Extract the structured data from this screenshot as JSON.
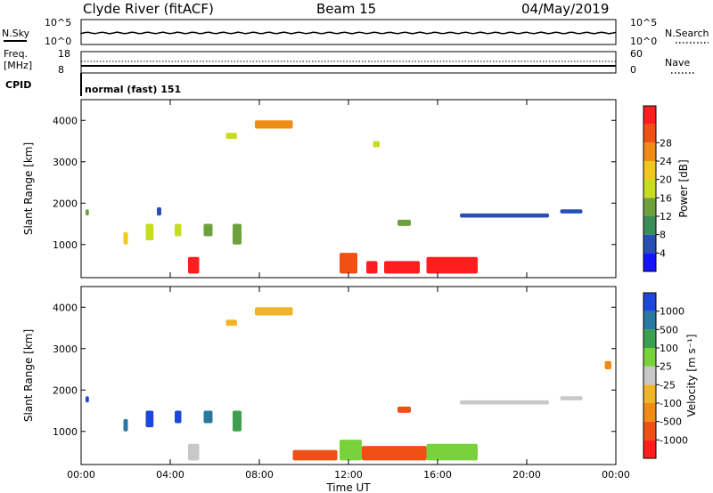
{
  "header": {
    "radar": "Clyde River (fitACF)",
    "beam": "Beam 15",
    "date": "04/May/2019"
  },
  "noise_panel": {
    "left_label": "N.Sky",
    "right_label": "N.Search",
    "left_ticks": [
      "10^5",
      "10^0"
    ],
    "right_ticks": [
      "10^5",
      "10^0"
    ]
  },
  "freq_panel": {
    "left_label_1": "Freq.",
    "left_label_2": "[MHz]",
    "right_label": "Nave",
    "left_ticks": [
      "18",
      "8"
    ],
    "right_ticks": [
      "60",
      "0"
    ],
    "cpid_label": "CPID",
    "cpid_value": "normal (fast) 151"
  },
  "chart_data": [
    {
      "type": "heatmap",
      "name": "power",
      "ylabel": "Slant Range [km]",
      "xlabel": "",
      "x_ticks": [
        "00:00",
        "04:00",
        "08:00",
        "12:00",
        "16:00",
        "20:00",
        "00:00"
      ],
      "y_ticks": [
        "1000",
        "2000",
        "3000",
        "4000"
      ],
      "ylim": [
        200,
        4500
      ],
      "colorbar": {
        "label": "Power [dB]",
        "ticks": [
          "4",
          "8",
          "12",
          "16",
          "20",
          "24",
          "28"
        ],
        "colors": [
          "#1414ff",
          "#2850b4",
          "#3c8c5a",
          "#6ea03c",
          "#c8dc1e",
          "#f0c81e",
          "#f08c14",
          "#f05014",
          "#ff1e1e"
        ]
      },
      "blobs": [
        {
          "t0": 1.9,
          "t1": 2.1,
          "r0": 1000,
          "r1": 1300,
          "c": 5
        },
        {
          "t0": 0.2,
          "t1": 0.35,
          "r0": 1700,
          "r1": 1850,
          "c": 3
        },
        {
          "t0": 2.9,
          "t1": 3.25,
          "r0": 1100,
          "r1": 1500,
          "c": 4
        },
        {
          "t0": 3.4,
          "t1": 3.6,
          "r0": 1700,
          "r1": 1900,
          "c": 1
        },
        {
          "t0": 4.2,
          "t1": 4.5,
          "r0": 1200,
          "r1": 1500,
          "c": 4
        },
        {
          "t0": 5.5,
          "t1": 5.9,
          "r0": 1200,
          "r1": 1500,
          "c": 3
        },
        {
          "t0": 6.8,
          "t1": 7.2,
          "r0": 1000,
          "r1": 1500,
          "c": 3
        },
        {
          "t0": 6.5,
          "t1": 7.0,
          "r0": 3550,
          "r1": 3700,
          "c": 4
        },
        {
          "t0": 7.8,
          "t1": 9.5,
          "r0": 3800,
          "r1": 4000,
          "c": 6
        },
        {
          "t0": 4.8,
          "t1": 5.3,
          "r0": 300,
          "r1": 700,
          "c": 8
        },
        {
          "t0": 11.6,
          "t1": 12.4,
          "r0": 300,
          "r1": 800,
          "c": 7
        },
        {
          "t0": 12.8,
          "t1": 13.3,
          "r0": 300,
          "r1": 600,
          "c": 8
        },
        {
          "t0": 13.6,
          "t1": 15.2,
          "r0": 300,
          "r1": 600,
          "c": 8
        },
        {
          "t0": 15.5,
          "t1": 17.8,
          "r0": 300,
          "r1": 700,
          "c": 8
        },
        {
          "t0": 14.2,
          "t1": 14.8,
          "r0": 1450,
          "r1": 1600,
          "c": 3
        },
        {
          "t0": 17.0,
          "t1": 21.0,
          "r0": 1650,
          "r1": 1750,
          "c": 1
        },
        {
          "t0": 21.5,
          "t1": 22.5,
          "r0": 1750,
          "r1": 1850,
          "c": 1
        },
        {
          "t0": 13.1,
          "t1": 13.4,
          "r0": 3350,
          "r1": 3500,
          "c": 4
        }
      ]
    },
    {
      "type": "heatmap",
      "name": "velocity",
      "ylabel": "Slant Range [km]",
      "xlabel": "Time UT",
      "x_ticks": [
        "00:00",
        "04:00",
        "08:00",
        "12:00",
        "16:00",
        "20:00",
        "00:00"
      ],
      "y_ticks": [
        "1000",
        "2000",
        "3000",
        "4000"
      ],
      "ylim": [
        200,
        4500
      ],
      "colorbar": {
        "label": "Velocity [m s⁻¹]",
        "ticks": [
          "1000",
          "500",
          "100",
          "25",
          "-25",
          "-100",
          "-500",
          "-1000"
        ],
        "colors": [
          "#1e46dc",
          "#2878a0",
          "#3ca050",
          "#78d23c",
          "#c8c8c8",
          "#f0b428",
          "#f08c14",
          "#f05014",
          "#ff1e1e"
        ]
      },
      "blobs": [
        {
          "t0": 0.2,
          "t1": 0.35,
          "r0": 1700,
          "r1": 1850,
          "c": 0
        },
        {
          "t0": 1.9,
          "t1": 2.1,
          "r0": 1000,
          "r1": 1300,
          "c": 1
        },
        {
          "t0": 2.9,
          "t1": 3.25,
          "r0": 1100,
          "r1": 1500,
          "c": 0
        },
        {
          "t0": 4.2,
          "t1": 4.5,
          "r0": 1200,
          "r1": 1500,
          "c": 0
        },
        {
          "t0": 5.5,
          "t1": 5.9,
          "r0": 1200,
          "r1": 1500,
          "c": 1
        },
        {
          "t0": 6.8,
          "t1": 7.2,
          "r0": 1000,
          "r1": 1500,
          "c": 2
        },
        {
          "t0": 6.5,
          "t1": 7.0,
          "r0": 3550,
          "r1": 3700,
          "c": 5
        },
        {
          "t0": 7.8,
          "t1": 9.5,
          "r0": 3800,
          "r1": 4000,
          "c": 5
        },
        {
          "t0": 4.8,
          "t1": 5.3,
          "r0": 300,
          "r1": 700,
          "c": 4
        },
        {
          "t0": 11.6,
          "t1": 12.6,
          "r0": 300,
          "r1": 800,
          "c": 3
        },
        {
          "t0": 9.5,
          "t1": 11.5,
          "r0": 300,
          "r1": 550,
          "c": 7
        },
        {
          "t0": 12.6,
          "t1": 15.5,
          "r0": 300,
          "r1": 650,
          "c": 7
        },
        {
          "t0": 15.5,
          "t1": 17.8,
          "r0": 300,
          "r1": 700,
          "c": 3
        },
        {
          "t0": 14.2,
          "t1": 14.8,
          "r0": 1450,
          "r1": 1600,
          "c": 7
        },
        {
          "t0": 17.0,
          "t1": 21.0,
          "r0": 1650,
          "r1": 1750,
          "c": 4
        },
        {
          "t0": 21.5,
          "t1": 22.5,
          "r0": 1750,
          "r1": 1850,
          "c": 4
        },
        {
          "t0": 23.5,
          "t1": 23.8,
          "r0": 2500,
          "r1": 2700,
          "c": 6
        }
      ]
    }
  ]
}
